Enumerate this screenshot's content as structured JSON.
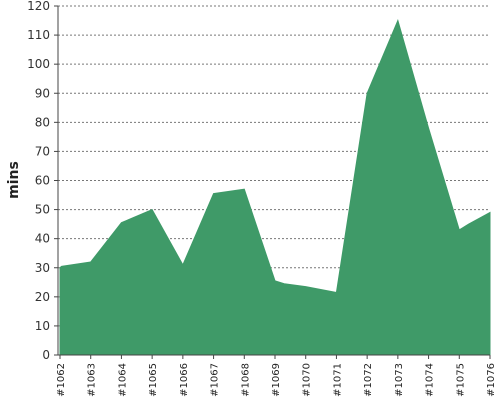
{
  "chart_data": {
    "type": "area",
    "title": "",
    "xlabel": "",
    "ylabel": "mins",
    "ylim": [
      0,
      120
    ],
    "y_ticks": [
      0,
      10,
      20,
      30,
      40,
      50,
      60,
      70,
      80,
      90,
      100,
      110,
      120
    ],
    "grid": true,
    "legend": "none",
    "color": "#3f9a68",
    "categories": [
      "#1062",
      "#1063",
      "#1064",
      "#1065",
      "#1066",
      "#1067",
      "#1068",
      "#1069",
      "#1070",
      "#1071",
      "#1072",
      "#1073",
      "#1074",
      "#1075",
      "#1076"
    ],
    "x_points": [
      0,
      0.05,
      1,
      2,
      3,
      4,
      5,
      6,
      7,
      7.3,
      8,
      9,
      10,
      11,
      12,
      13,
      13.3,
      14
    ],
    "y_points": [
      30,
      30.5,
      32,
      45.5,
      50,
      31,
      55.5,
      57,
      25.5,
      24.5,
      23.5,
      21.5,
      90,
      115,
      78,
      43,
      45,
      49
    ]
  }
}
